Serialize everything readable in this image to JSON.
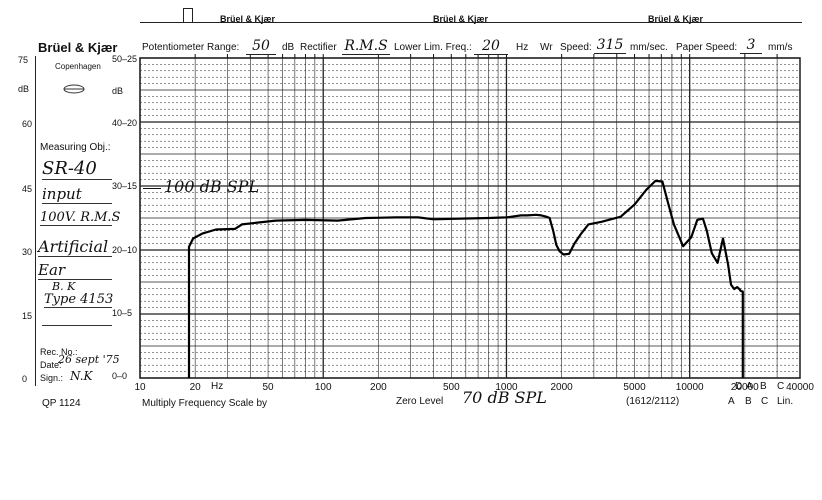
{
  "header": {
    "brand_top": [
      "Brüel & Kjær",
      "Brüel & Kjær",
      "Brüel & Kjær"
    ],
    "brand_left": "Brüel & Kjær",
    "city": "Copenhagen",
    "pot_label": "Potentiometer Range:",
    "pot_value": "50",
    "pot_unit": "dB",
    "rect_label": "Rectifier",
    "rect_value": "R.M.S",
    "lowlim_label": "Lower Lim. Freq.:",
    "lowlim_value": "20",
    "lowlim_unit": "Hz",
    "wr_label": "Wr",
    "speed_label": "Speed:",
    "speed_value": "315",
    "speed_unit": "mm/sec.",
    "paper_label": "Paper Speed:",
    "paper_value": "3",
    "paper_unit": "mm/s"
  },
  "sidebar": {
    "measuring_label": "Measuring Obj.:",
    "obj_lines": [
      "SR-40",
      "input",
      "100V. R.M.S",
      "Artificial",
      "Ear",
      "B. K",
      "Type 4153"
    ],
    "rec_label": "Rec. No.:",
    "date_label": "Date:",
    "date_value": "26 sept '75",
    "sign_label": "Sign.:",
    "sign_value": "N.K",
    "left_db_ticks": [
      "75",
      "dB",
      "60",
      "45",
      "30",
      "15",
      "0"
    ],
    "inner_db_ticks": [
      "50",
      "25",
      "dB",
      "40",
      "20",
      "30",
      "15",
      "20",
      "10",
      "10",
      "5",
      "0",
      "0"
    ]
  },
  "footer": {
    "form_no": "QP 1124",
    "multiply_label": "Multiply Frequency Scale by",
    "zero_label": "Zero Level",
    "zero_value": "70 dB SPL",
    "code": "(1612/2112)",
    "weight_top": [
      "D",
      "A",
      "B",
      "C"
    ],
    "weight_bottom": [
      "A",
      "B",
      "C",
      "Lin."
    ],
    "hz_label": "Hz"
  },
  "annotation": "100 dB SPL",
  "chart_data": {
    "type": "line",
    "title": "",
    "xlabel": "Hz",
    "ylabel": "dB",
    "x_scale": "log",
    "xlim": [
      10,
      40000
    ],
    "ylim": [
      0,
      50
    ],
    "x_tick_labels": [
      "10",
      "20",
      "50",
      "100",
      "200",
      "500",
      "1000",
      "2000",
      "5000",
      "10000",
      "20000",
      "40000"
    ],
    "y_tick_labels": [
      "0",
      "10",
      "20",
      "30",
      "40",
      "50"
    ],
    "grid": true,
    "series": [
      {
        "x": [
          18.5,
          18.5,
          19.5,
          22,
          26,
          33,
          36,
          55,
          80,
          120,
          170,
          250,
          330,
          400,
          560,
          800,
          1000,
          1200,
          1300,
          1450,
          1550,
          1650,
          1720,
          1800,
          1870,
          1950,
          2050,
          2200,
          2350,
          2550,
          2800,
          3300,
          4200,
          5000,
          5800,
          6500,
          7100,
          7600,
          8200,
          9200,
          10200,
          11000,
          11800,
          12400,
          13200,
          14200,
          15200,
          16200,
          16800,
          17500,
          18200,
          18800,
          19000,
          19500,
          19500
        ],
        "y": [
          0,
          20.5,
          21.8,
          22.6,
          23.2,
          23.3,
          24.0,
          24.6,
          24.7,
          24.6,
          25.0,
          25.1,
          25.1,
          24.8,
          24.9,
          25.0,
          25.1,
          25.4,
          25.4,
          25.5,
          25.4,
          25.2,
          25.0,
          23.0,
          20.8,
          19.8,
          19.3,
          19.4,
          21.0,
          22.5,
          24.0,
          24.4,
          25.2,
          27.1,
          29.4,
          30.8,
          30.7,
          27.5,
          24.0,
          20.6,
          22.0,
          24.7,
          24.9,
          23.0,
          19.5,
          18.0,
          21.8,
          17.7,
          14.6,
          13.9,
          14.2,
          13.8,
          13.6,
          13.5,
          0
        ]
      }
    ]
  }
}
